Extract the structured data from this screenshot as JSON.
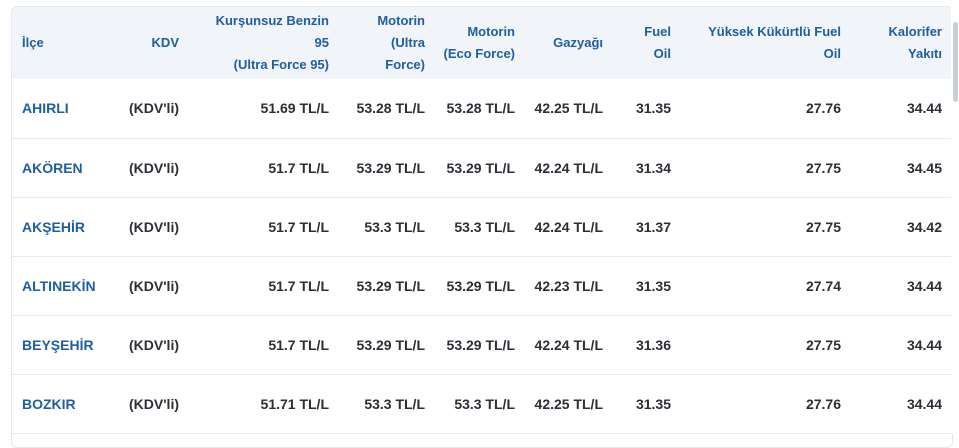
{
  "table": {
    "headers": {
      "ilce": "İlçe",
      "kdv": "KDV",
      "benzin_line1": "Kurşunsuz Benzin",
      "benzin_line2": "95",
      "benzin_line3": "(Ultra Force 95)",
      "motorin_ultra_line1": "Motorin",
      "motorin_ultra_line2": "(Ultra",
      "motorin_ultra_line3": "Force)",
      "motorin_eco_line1": "Motorin",
      "motorin_eco_line2": "(Eco Force)",
      "gazyagi": "Gazyağı",
      "fuel_oil_line1": "Fuel",
      "fuel_oil_line2": "Oil",
      "yuksek_line1": "Yüksek Kükürtlü Fuel",
      "yuksek_line2": "Oil",
      "kalorifer_line1": "Kalorifer",
      "kalorifer_line2": "Yakıtı"
    },
    "rows": [
      {
        "ilce": "AHIRLI",
        "kdv": "(KDV'li)",
        "benzin": "51.69 TL/L",
        "motorin_ultra": "53.28 TL/L",
        "motorin_eco": "53.28 TL/L",
        "gazyagi": "42.25 TL/L",
        "fuel_oil": "31.35",
        "yuksek": "27.76",
        "kalorifer": "34.44"
      },
      {
        "ilce": "AKÖREN",
        "kdv": "(KDV'li)",
        "benzin": "51.7 TL/L",
        "motorin_ultra": "53.29 TL/L",
        "motorin_eco": "53.29 TL/L",
        "gazyagi": "42.24 TL/L",
        "fuel_oil": "31.34",
        "yuksek": "27.75",
        "kalorifer": "34.45"
      },
      {
        "ilce": "AKŞEHİR",
        "kdv": "(KDV'li)",
        "benzin": "51.7 TL/L",
        "motorin_ultra": "53.3 TL/L",
        "motorin_eco": "53.3 TL/L",
        "gazyagi": "42.24 TL/L",
        "fuel_oil": "31.37",
        "yuksek": "27.75",
        "kalorifer": "34.42"
      },
      {
        "ilce": "ALTINEKİN",
        "kdv": "(KDV'li)",
        "benzin": "51.7 TL/L",
        "motorin_ultra": "53.29 TL/L",
        "motorin_eco": "53.29 TL/L",
        "gazyagi": "42.23 TL/L",
        "fuel_oil": "31.35",
        "yuksek": "27.74",
        "kalorifer": "34.44"
      },
      {
        "ilce": "BEYŞEHİR",
        "kdv": "(KDV'li)",
        "benzin": "51.7 TL/L",
        "motorin_ultra": "53.29 TL/L",
        "motorin_eco": "53.29 TL/L",
        "gazyagi": "42.24 TL/L",
        "fuel_oil": "31.36",
        "yuksek": "27.75",
        "kalorifer": "34.44"
      },
      {
        "ilce": "BOZKIR",
        "kdv": "(KDV'li)",
        "benzin": "51.71 TL/L",
        "motorin_ultra": "53.3 TL/L",
        "motorin_eco": "53.3 TL/L",
        "gazyagi": "42.25 TL/L",
        "fuel_oil": "31.35",
        "yuksek": "27.76",
        "kalorifer": "34.44"
      }
    ]
  }
}
